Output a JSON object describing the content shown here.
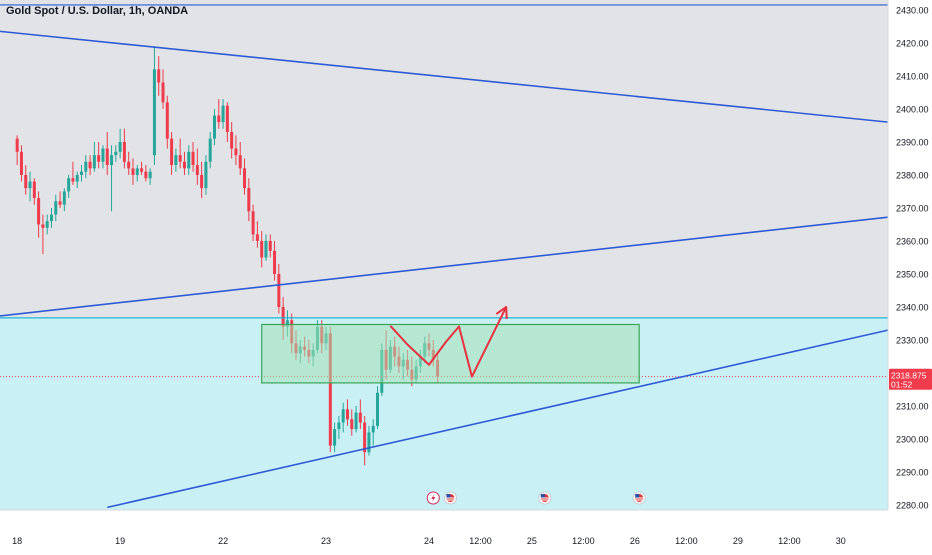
{
  "header": {
    "title": "Gold Spot / U.S. Dollar, 1h, OANDA"
  },
  "colors": {
    "up": "#26a69a",
    "down": "#ef3b4b",
    "upper_zone": "#e1e3e6",
    "lower_zone": "#c9f0f5",
    "trendline": "#2d5bd7",
    "level_line": "#1fb3d6",
    "box_fill": "#a6e0b5",
    "box_stroke": "#3aa655",
    "projection": "#e8303f",
    "price_tag": "#ef3b4b"
  },
  "price_tag": {
    "price": "2318.875",
    "countdown": "01:52"
  },
  "events_icons": [
    "lightning-event-icon",
    "us-flag-event-icon",
    "us-flag-event-icon",
    "us-flag-event-icon"
  ],
  "chart_data": {
    "type": "candlestick",
    "title": "Gold Spot / U.S. Dollar, 1h, OANDA",
    "y_axis": {
      "ticks": [
        2280,
        2290,
        2300,
        2310,
        2320,
        2330,
        2340,
        2350,
        2360,
        2370,
        2380,
        2390,
        2400,
        2410,
        2420,
        2430
      ],
      "labels": [
        "2280.00",
        "2290.00",
        "2300.00",
        "2310.00",
        "2320.00",
        "2330.00",
        "2340.00",
        "2350.00",
        "2360.00",
        "2370.00",
        "2380.00",
        "2390.00",
        "2400.00",
        "2410.00",
        "2420.00",
        "2430.00"
      ],
      "ylim": [
        2278.5,
        2433
      ]
    },
    "x_axis": {
      "labels": [
        "18",
        "19",
        "22",
        "23",
        "24",
        "12:00",
        "25",
        "12:00",
        "26",
        "12:00",
        "29",
        "12:00",
        "30"
      ],
      "tick_index": [
        0,
        24,
        48,
        72,
        96,
        108,
        120,
        132,
        144,
        156,
        168,
        180,
        192
      ],
      "xlim": [
        -4,
        203
      ]
    },
    "horizontal_levels": [
      {
        "price": 2431.5,
        "role": "resistance"
      },
      {
        "price": 2336.7,
        "role": "support"
      },
      {
        "price": 2318.9,
        "role": "last-price"
      }
    ],
    "zones": {
      "split_price": 2336.7
    },
    "trendlines": [
      {
        "from": {
          "i": -4,
          "p": 2423.5
        },
        "to": {
          "i": 203,
          "p": 2396.0
        }
      },
      {
        "from": {
          "i": -4,
          "p": 2337.3
        },
        "to": {
          "i": 203,
          "p": 2367.2
        }
      },
      {
        "from": {
          "i": 21,
          "p": 2279.3
        },
        "to": {
          "i": 203,
          "p": 2333.0
        }
      }
    ],
    "rectangle": {
      "i0": 57,
      "i1": 145,
      "p_top": 2334.7,
      "p_bottom": 2317.0
    },
    "projection_path": [
      {
        "i": 87,
        "p": 2334.3
      },
      {
        "i": 91,
        "p": 2328.6
      },
      {
        "i": 96,
        "p": 2322.5
      },
      {
        "i": 100,
        "p": 2329.5
      },
      {
        "i": 103,
        "p": 2334.1
      },
      {
        "i": 106,
        "p": 2318.9
      },
      {
        "i": 114,
        "p": 2340.0
      }
    ],
    "candles": [
      [
        2391.0,
        2392.0,
        2383.0,
        2387.0
      ],
      [
        2387.0,
        2389.0,
        2378.0,
        2380.0
      ],
      [
        2380.0,
        2383.0,
        2374.0,
        2376.0
      ],
      [
        2376.0,
        2381.0,
        2372.0,
        2378.0
      ],
      [
        2378.0,
        2379.0,
        2371.0,
        2373.0
      ],
      [
        2373.0,
        2375.0,
        2361.0,
        2365.0
      ],
      [
        2365.0,
        2368.0,
        2356.0,
        2364.0
      ],
      [
        2364.0,
        2368.0,
        2362.0,
        2366.0
      ],
      [
        2366.0,
        2370.0,
        2364.0,
        2368.0
      ],
      [
        2368.0,
        2374.0,
        2366.0,
        2372.0
      ],
      [
        2372.0,
        2375.0,
        2370.0,
        2371.0
      ],
      [
        2371.0,
        2376.0,
        2369.0,
        2375.0
      ],
      [
        2375.0,
        2380.0,
        2373.0,
        2379.0
      ],
      [
        2379.0,
        2384.0,
        2377.0,
        2378.0
      ],
      [
        2378.0,
        2381.0,
        2376.0,
        2380.0
      ],
      [
        2380.0,
        2383.0,
        2378.0,
        2381.0
      ],
      [
        2381.0,
        2386.0,
        2379.0,
        2384.0
      ],
      [
        2384.0,
        2386.0,
        2380.0,
        2382.0
      ],
      [
        2382.0,
        2390.0,
        2381.0,
        2386.0
      ],
      [
        2386.0,
        2390.0,
        2382.0,
        2384.0
      ],
      [
        2384.0,
        2389.0,
        2382.0,
        2388.0
      ],
      [
        2388.0,
        2393.0,
        2380.0,
        2383.0
      ],
      [
        2383.0,
        2389.0,
        2369.0,
        2386.0
      ],
      [
        2386.0,
        2389.0,
        2384.0,
        2387.0
      ],
      [
        2387.0,
        2394.0,
        2385.0,
        2390.0
      ],
      [
        2390.0,
        2394.0,
        2382.0,
        2384.0
      ],
      [
        2384.0,
        2387.0,
        2380.0,
        2382.0
      ],
      [
        2382.0,
        2385.0,
        2377.0,
        2380.0
      ],
      [
        2380.0,
        2383.0,
        2378.0,
        2382.0
      ],
      [
        2382.0,
        2384.0,
        2380.0,
        2381.0
      ],
      [
        2381.0,
        2383.0,
        2378.0,
        2379.0
      ],
      [
        2379.0,
        2382.0,
        2377.0,
        2381.0
      ],
      [
        2386.0,
        2419.0,
        2383.0,
        2412.0
      ],
      [
        2412.0,
        2416.0,
        2404.0,
        2408.0
      ],
      [
        2408.0,
        2412.0,
        2400.0,
        2402.0
      ],
      [
        2402.0,
        2404.0,
        2388.0,
        2391.0
      ],
      [
        2391.0,
        2393.0,
        2380.0,
        2383.0
      ],
      [
        2383.0,
        2388.0,
        2381.0,
        2386.0
      ],
      [
        2386.0,
        2391.0,
        2382.0,
        2384.0
      ],
      [
        2384.0,
        2387.0,
        2380.0,
        2382.0
      ],
      [
        2382.0,
        2389.0,
        2380.0,
        2387.0
      ],
      [
        2387.0,
        2390.0,
        2381.0,
        2383.0
      ],
      [
        2383.0,
        2388.0,
        2377.0,
        2380.0
      ],
      [
        2380.0,
        2384.0,
        2373.0,
        2376.0
      ],
      [
        2376.0,
        2386.0,
        2374.0,
        2384.0
      ],
      [
        2384.0,
        2393.0,
        2382.0,
        2391.0
      ],
      [
        2391.0,
        2400.0,
        2389.0,
        2398.0
      ],
      [
        2398.0,
        2403.0,
        2394.0,
        2396.0
      ],
      [
        2396.0,
        2403.0,
        2394.0,
        2401.0
      ],
      [
        2401.0,
        2402.0,
        2390.0,
        2393.0
      ],
      [
        2393.0,
        2396.0,
        2385.0,
        2388.0
      ],
      [
        2388.0,
        2392.0,
        2383.0,
        2386.0
      ],
      [
        2386.0,
        2390.0,
        2380.0,
        2382.0
      ],
      [
        2382.0,
        2385.0,
        2374.0,
        2376.0
      ],
      [
        2376.0,
        2379.0,
        2366.0,
        2369.0
      ],
      [
        2369.0,
        2371.0,
        2360.0,
        2362.0
      ],
      [
        2362.0,
        2366.0,
        2358.0,
        2360.0
      ],
      [
        2360.0,
        2363.0,
        2352.0,
        2355.0
      ],
      [
        2355.0,
        2362.0,
        2354.0,
        2360.0
      ],
      [
        2360.0,
        2362.0,
        2355.0,
        2357.0
      ],
      [
        2357.0,
        2360.0,
        2348.0,
        2350.0
      ],
      [
        2350.0,
        2353.0,
        2338.0,
        2340.0
      ],
      [
        2340.0,
        2343.0,
        2330.0,
        2334.0
      ],
      [
        2334.0,
        2339.0,
        2331.0,
        2336.0
      ],
      [
        2336.0,
        2338.0,
        2326.0,
        2329.0
      ],
      [
        2329.0,
        2333.0,
        2324.0,
        2326.0
      ],
      [
        2326.0,
        2330.0,
        2323.0,
        2328.0
      ],
      [
        2328.0,
        2331.0,
        2325.0,
        2327.0
      ],
      [
        2327.0,
        2330.0,
        2323.0,
        2325.0
      ],
      [
        2325.0,
        2329.0,
        2322.0,
        2327.0
      ],
      [
        2327.0,
        2336.0,
        2326.0,
        2334.0
      ],
      [
        2334.0,
        2336.0,
        2326.0,
        2329.0
      ],
      [
        2329.0,
        2334.0,
        2327.0,
        2332.0
      ],
      [
        2332.0,
        2334.0,
        2296.0,
        2298.0
      ],
      [
        2298.0,
        2305.0,
        2296.0,
        2303.0
      ],
      [
        2303.0,
        2307.0,
        2300.0,
        2305.0
      ],
      [
        2305.0,
        2311.0,
        2302.0,
        2309.0
      ],
      [
        2309.0,
        2312.0,
        2304.0,
        2306.0
      ],
      [
        2306.0,
        2309.0,
        2301.0,
        2303.0
      ],
      [
        2303.0,
        2310.0,
        2302.0,
        2308.0
      ],
      [
        2308.0,
        2312.0,
        2303.0,
        2305.0
      ],
      [
        2305.0,
        2307.0,
        2292.0,
        2296.0
      ],
      [
        2296.0,
        2304.0,
        2295.0,
        2302.0
      ],
      [
        2302.0,
        2306.0,
        2298.0,
        2304.0
      ],
      [
        2304.0,
        2316.0,
        2303.0,
        2314.0
      ],
      [
        2314.0,
        2329.0,
        2313.0,
        2327.0
      ],
      [
        2327.0,
        2333.0,
        2318.0,
        2321.0
      ],
      [
        2321.0,
        2330.0,
        2320.0,
        2328.0
      ],
      [
        2328.0,
        2331.0,
        2322.0,
        2325.0
      ],
      [
        2325.0,
        2328.0,
        2320.0,
        2322.0
      ],
      [
        2322.0,
        2326.0,
        2318.0,
        2324.0
      ],
      [
        2324.0,
        2327.0,
        2319.0,
        2321.0
      ],
      [
        2321.0,
        2325.0,
        2316.0,
        2318.0
      ],
      [
        2318.0,
        2324.0,
        2317.0,
        2322.0
      ],
      [
        2322.0,
        2327.0,
        2320.0,
        2325.0
      ],
      [
        2325.0,
        2331.0,
        2323.0,
        2329.0
      ],
      [
        2329.0,
        2332.0,
        2325.0,
        2327.0
      ],
      [
        2327.0,
        2330.0,
        2322.0,
        2324.0
      ],
      [
        2324.0,
        2326.0,
        2317.0,
        2319.0
      ]
    ]
  }
}
